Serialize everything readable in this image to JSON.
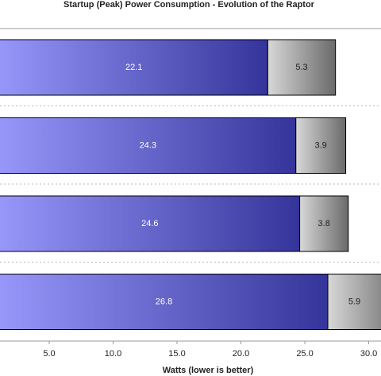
{
  "chart_data": {
    "type": "stacked-bar-horizontal",
    "title": "Startup (Peak) Power Consumption - Evolution of the Raptor",
    "x_label": "Watts (lower is better)",
    "categories": [
      null,
      null,
      null,
      null
    ],
    "series": [
      {
        "color": "#34349a",
        "values": [
          22.1,
          24.3,
          24.6,
          26.8
        ]
      },
      {
        "color": "#6a6a6a",
        "values": [
          5.3,
          3.9,
          3.8,
          5.9
        ]
      }
    ],
    "xlim": [
      1.15,
      30.96
    ],
    "xticks": [
      {
        "value": 5,
        "label": "5.0"
      },
      {
        "value": 10,
        "label": "10.0"
      },
      {
        "value": 15,
        "label": "15.0"
      },
      {
        "value": 20,
        "label": "20.0"
      },
      {
        "value": 25,
        "label": "25.0"
      },
      {
        "value": 30,
        "label": "30.0"
      }
    ]
  }
}
